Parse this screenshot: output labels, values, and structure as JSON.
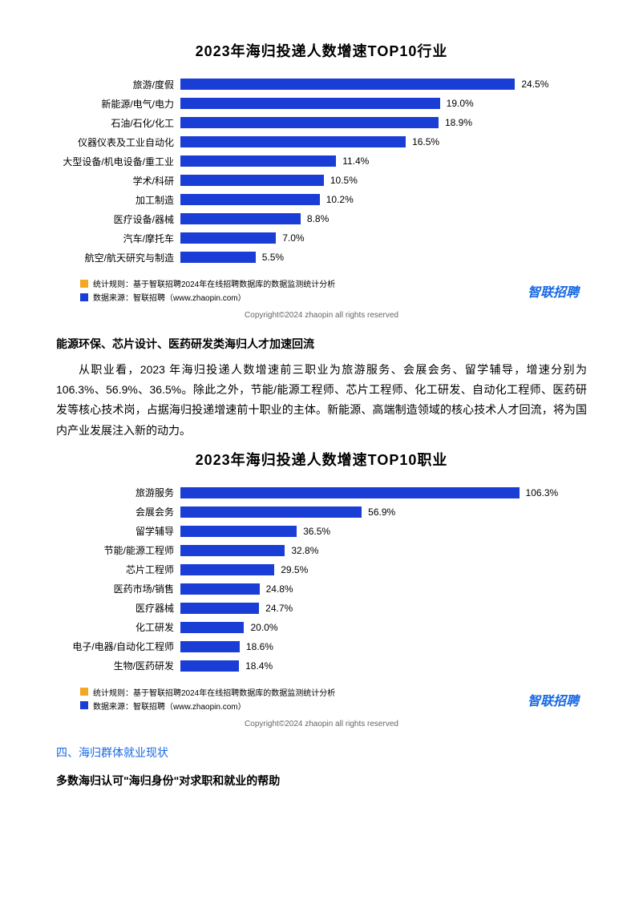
{
  "chart1": {
    "type": "bar-horizontal",
    "title": "2023年海归投递人数增速TOP10行业",
    "title_fontsize": 18,
    "bar_color": "#1a3dd6",
    "background_color": "#ffffff",
    "max_value": 28,
    "items": [
      {
        "label": "旅游/度假",
        "value": 24.5,
        "display": "24.5%"
      },
      {
        "label": "新能源/电气/电力",
        "value": 19.0,
        "display": "19.0%"
      },
      {
        "label": "石油/石化/化工",
        "value": 18.9,
        "display": "18.9%"
      },
      {
        "label": "仪器仪表及工业自动化",
        "value": 16.5,
        "display": "16.5%"
      },
      {
        "label": "大型设备/机电设备/重工业",
        "value": 11.4,
        "display": "11.4%"
      },
      {
        "label": "学术/科研",
        "value": 10.5,
        "display": "10.5%"
      },
      {
        "label": "加工制造",
        "value": 10.2,
        "display": "10.2%"
      },
      {
        "label": "医疗设备/器械",
        "value": 8.8,
        "display": "8.8%"
      },
      {
        "label": "汽车/摩托车",
        "value": 7.0,
        "display": "7.0%"
      },
      {
        "label": "航空/航天研究与制造",
        "value": 5.5,
        "display": "5.5%"
      }
    ]
  },
  "chart2": {
    "type": "bar-horizontal",
    "title": "2023年海归投递人数增速TOP10职业",
    "title_fontsize": 18,
    "bar_color": "#1a3dd6",
    "background_color": "#ffffff",
    "max_value": 120,
    "items": [
      {
        "label": "旅游服务",
        "value": 106.3,
        "display": "106.3%"
      },
      {
        "label": "会展会务",
        "value": 56.9,
        "display": "56.9%"
      },
      {
        "label": "留学辅导",
        "value": 36.5,
        "display": "36.5%"
      },
      {
        "label": "节能/能源工程师",
        "value": 32.8,
        "display": "32.8%"
      },
      {
        "label": "芯片工程师",
        "value": 29.5,
        "display": "29.5%"
      },
      {
        "label": "医药市场/销售",
        "value": 24.8,
        "display": "24.8%"
      },
      {
        "label": "医疗器械",
        "value": 24.7,
        "display": "24.7%"
      },
      {
        "label": "化工研发",
        "value": 20.0,
        "display": "20.0%"
      },
      {
        "label": "电子/电器/自动化工程师",
        "value": 18.6,
        "display": "18.6%"
      },
      {
        "label": "生物/医药研发",
        "value": 18.4,
        "display": "18.4%"
      }
    ]
  },
  "legend": {
    "rule_color": "#f5a623",
    "source_color": "#1a3dd6",
    "rule_text": "统计规则：基于智联招聘2024年在线招聘数据库的数据监测统计分析",
    "source_text": "数据来源：智联招聘（www.zhaopin.com）"
  },
  "brand": {
    "name": "智联招聘"
  },
  "copyright_text": "Copyright©2024 zhaopin all rights reserved",
  "text": {
    "heading1": "能源环保、芯片设计、医药研发类海归人才加速回流",
    "para1": "从职业看，2023 年海归投递人数增速前三职业为旅游服务、会展会务、留学辅导，增速分别为 106.3%、56.9%、36.5%。除此之外，节能/能源工程师、芯片工程师、化工研发、自动化工程师、医药研发等核心技术岗，占据海归投递增速前十职业的主体。新能源、高端制造领域的核心技术人才回流，将为国内产业发展注入新的动力。",
    "subsection": "四、海归群体就业现状",
    "heading2": "多数海归认可\"海归身份\"对求职和就业的帮助"
  },
  "colors": {
    "text": "#000000",
    "blue_accent": "#1768e4",
    "bar": "#1a3dd6",
    "legend_orange": "#f5a623"
  }
}
